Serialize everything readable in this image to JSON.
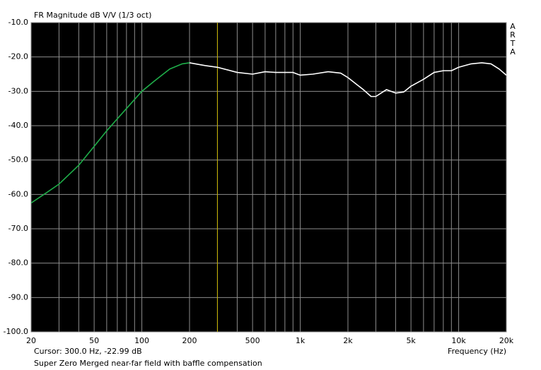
{
  "chart_data": {
    "type": "line",
    "title": "FR Magnitude dB V/V (1/3 oct)",
    "x_label": "Frequency (Hz)",
    "brand": "ARTA",
    "cursor_text": "Cursor: 300.0 Hz, -22.99 dB",
    "caption": "Super Zero Merged near-far field with baffle compensation",
    "log_x": true,
    "grid": true,
    "background": "#000000",
    "grid_color": "#8c8c8c",
    "cursor_color": "#c8b400",
    "cursor_x": 300,
    "xlim": [
      20,
      20000
    ],
    "ylim": [
      -100,
      -10
    ],
    "xticks": [
      20,
      50,
      100,
      200,
      500,
      {
        "value": 1000,
        "label": "1k"
      },
      {
        "value": 2000,
        "label": "2k"
      },
      {
        "value": 5000,
        "label": "5k"
      },
      {
        "value": 10000,
        "label": "10k"
      },
      {
        "value": 20000,
        "label": "20k"
      }
    ],
    "xminor": [
      30,
      40,
      60,
      70,
      80,
      90,
      300,
      400,
      600,
      700,
      800,
      900,
      3000,
      4000,
      6000,
      7000,
      8000,
      9000
    ],
    "yticks": [
      {
        "value": -10,
        "label": "-10.0"
      },
      {
        "value": -20,
        "label": "-20.0"
      },
      {
        "value": -30,
        "label": "-30.0"
      },
      {
        "value": -40,
        "label": "-40.0"
      },
      {
        "value": -50,
        "label": "-50.0"
      },
      {
        "value": -60,
        "label": "-60.0"
      },
      {
        "value": -70,
        "label": "-70.0"
      },
      {
        "value": -80,
        "label": "-80.0"
      },
      {
        "value": -90,
        "label": "-90.0"
      },
      {
        "value": -100,
        "label": "-100.0"
      }
    ],
    "series": [
      {
        "color": "#1fae4a",
        "x": [
          20,
          25,
          30,
          40,
          50,
          60,
          70,
          80,
          100,
          120,
          150,
          180,
          200
        ],
        "values": [
          -62.5,
          -59.5,
          -57,
          -51.5,
          -46,
          -41.5,
          -38,
          -35,
          -30,
          -27,
          -23.5,
          -22,
          -21.7
        ]
      },
      {
        "color": "#ffffff",
        "x": [
          200,
          250,
          300,
          400,
          500,
          600,
          700,
          900,
          1000,
          1200,
          1500,
          1800,
          2000,
          2500,
          2800,
          3000,
          3500,
          4000,
          4500,
          5000,
          6000,
          7000,
          8000,
          9000,
          10000,
          12000,
          14000,
          16000,
          18000,
          20000
        ],
        "values": [
          -21.7,
          -22.5,
          -23,
          -24.5,
          -25,
          -24.3,
          -24.5,
          -24.5,
          -25.3,
          -25,
          -24.3,
          -24.7,
          -26,
          -29.5,
          -31.5,
          -31.5,
          -29.5,
          -30.5,
          -30.2,
          -28.5,
          -26.5,
          -24.5,
          -24,
          -24,
          -23,
          -22,
          -21.7,
          -22,
          -23.5,
          -25.3
        ]
      }
    ]
  }
}
